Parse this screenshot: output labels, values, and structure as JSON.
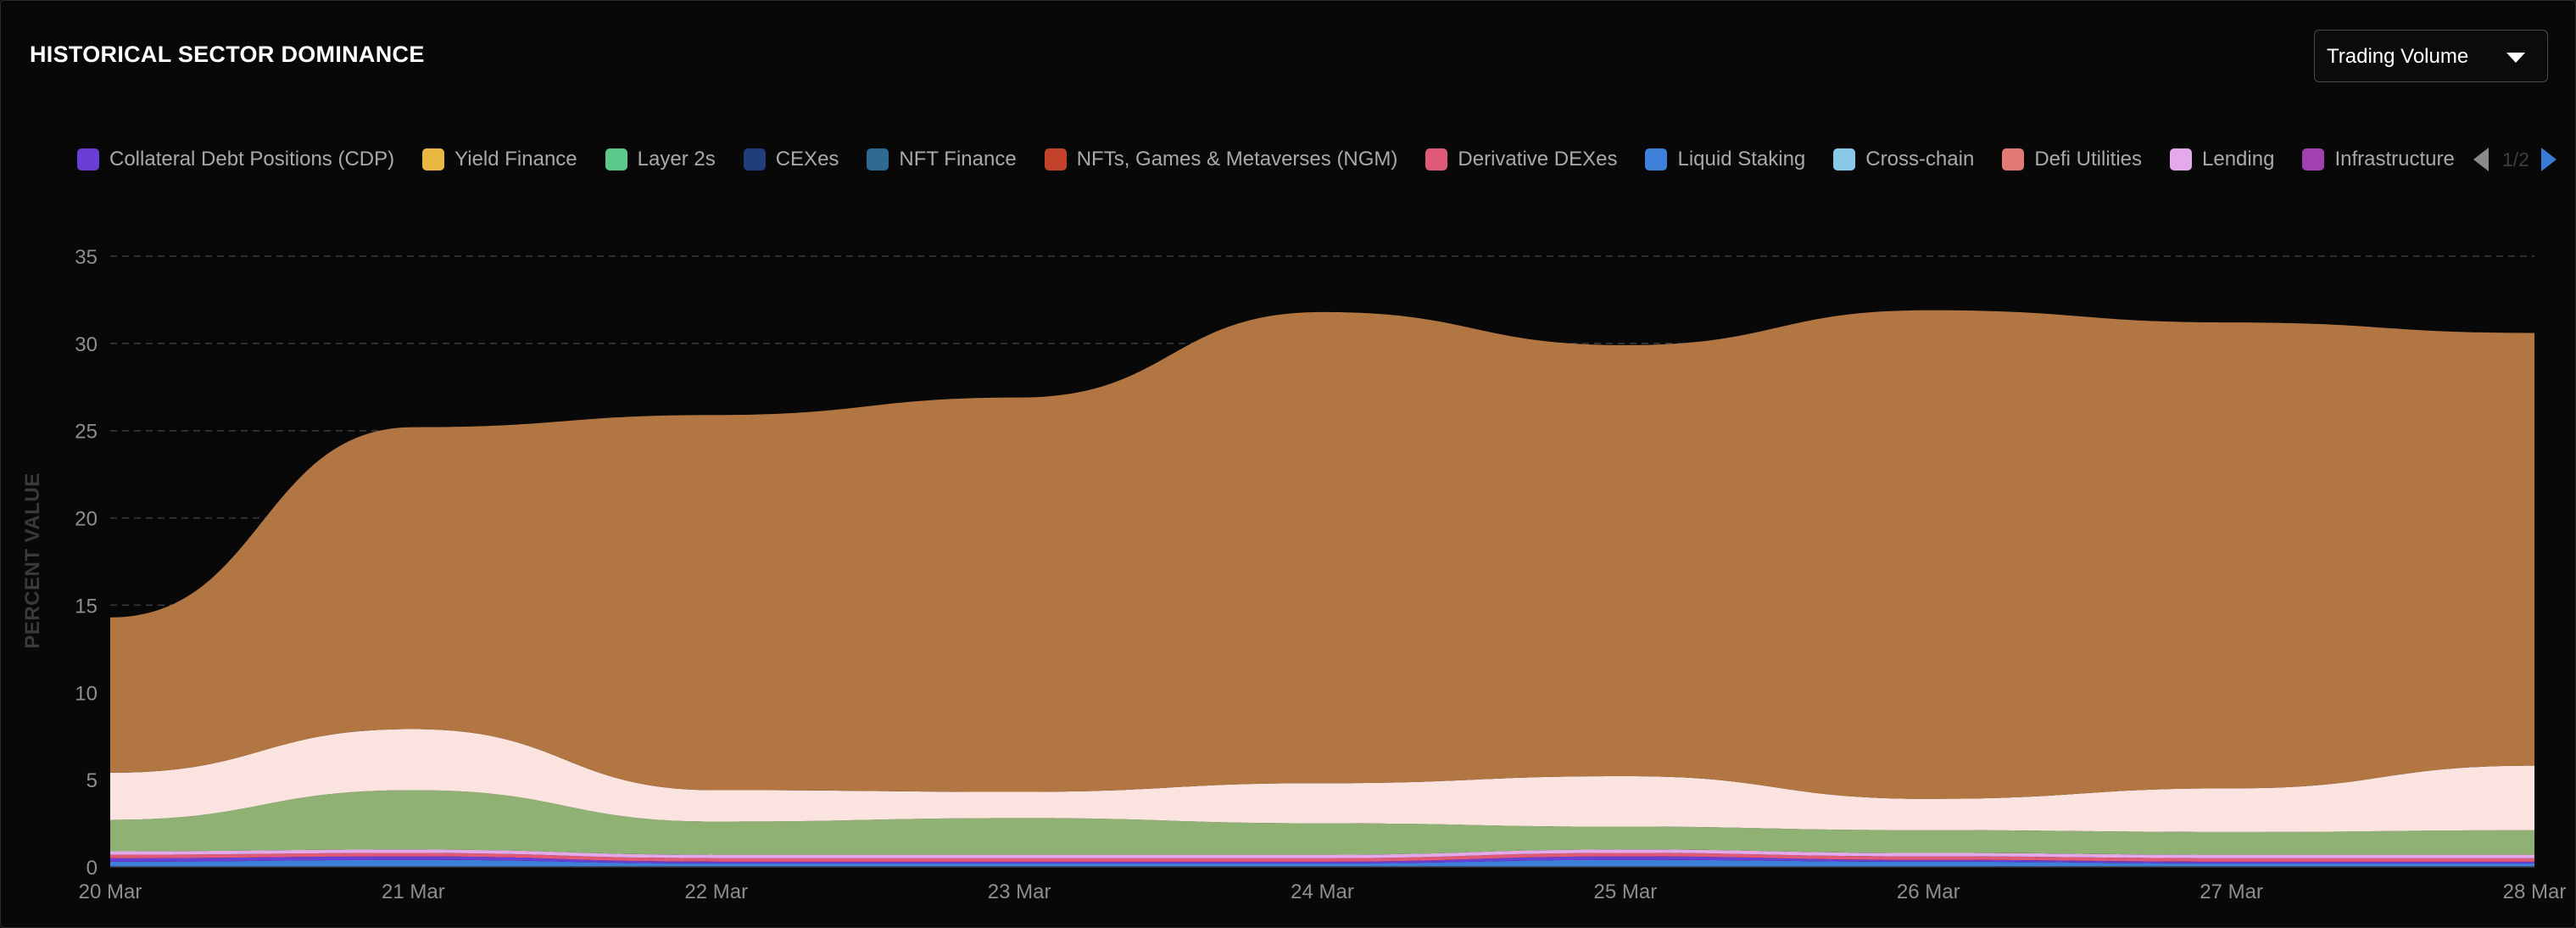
{
  "panel": {
    "title": "HISTORICAL SECTOR DOMINANCE",
    "metric_selector": {
      "selected": "Trading Volume",
      "icon": "caret-down-icon"
    }
  },
  "legend": {
    "items": [
      {
        "label": "Collateral Debt Positions (CDP)",
        "color": "#6b3fd6"
      },
      {
        "label": "Yield Finance",
        "color": "#e8b840"
      },
      {
        "label": "Layer 2s",
        "color": "#5cc98a"
      },
      {
        "label": "CEXes",
        "color": "#1f3f7a"
      },
      {
        "label": "NFT Finance",
        "color": "#2e6a93"
      },
      {
        "label": "NFTs, Games & Metaverses (NGM)",
        "color": "#c2432a"
      },
      {
        "label": "Derivative DEXes",
        "color": "#e05a78"
      },
      {
        "label": "Liquid Staking",
        "color": "#3d7fd9"
      },
      {
        "label": "Cross-chain",
        "color": "#8ac8e8"
      },
      {
        "label": "Defi Utilities",
        "color": "#e07a72"
      },
      {
        "label": "Lending",
        "color": "#e3a9e8"
      },
      {
        "label": "Infrastructure",
        "color": "#a23fb3"
      }
    ],
    "page": "1/2"
  },
  "chart_data": {
    "type": "area",
    "stacked": true,
    "ylabel": "PERCENT VALUE",
    "ylim": [
      0,
      35
    ],
    "yticks": [
      0,
      5,
      10,
      15,
      20,
      25,
      30,
      35
    ],
    "grid": "horizontal dashed",
    "x": [
      "20 Mar",
      "21 Mar",
      "22 Mar",
      "23 Mar",
      "24 Mar",
      "25 Mar",
      "26 Mar",
      "27 Mar",
      "28 Mar"
    ],
    "series": [
      {
        "color": "#3d7fd9",
        "values": [
          0.3,
          0.4,
          0.2,
          0.2,
          0.2,
          0.4,
          0.3,
          0.2,
          0.2
        ]
      },
      {
        "color": "#6b3fd6",
        "values": [
          0.2,
          0.2,
          0.1,
          0.1,
          0.1,
          0.2,
          0.1,
          0.1,
          0.1
        ]
      },
      {
        "color": "#e05a78",
        "values": [
          0.2,
          0.2,
          0.2,
          0.2,
          0.2,
          0.2,
          0.2,
          0.2,
          0.2
        ]
      },
      {
        "color": "#e3a9e8",
        "values": [
          0.2,
          0.2,
          0.2,
          0.2,
          0.2,
          0.2,
          0.2,
          0.2,
          0.2
        ]
      },
      {
        "color": "#8fb174",
        "values": [
          1.8,
          3.4,
          1.9,
          2.1,
          1.8,
          1.3,
          1.3,
          1.3,
          1.4
        ]
      },
      {
        "color": "#fbe4e0",
        "values": [
          2.7,
          3.5,
          1.8,
          1.5,
          2.3,
          2.9,
          1.8,
          2.5,
          3.7
        ]
      },
      {
        "color": "#b27643",
        "values": [
          8.9,
          17.3,
          21.5,
          22.6,
          27.0,
          24.7,
          28.0,
          26.7,
          24.8
        ]
      }
    ]
  }
}
